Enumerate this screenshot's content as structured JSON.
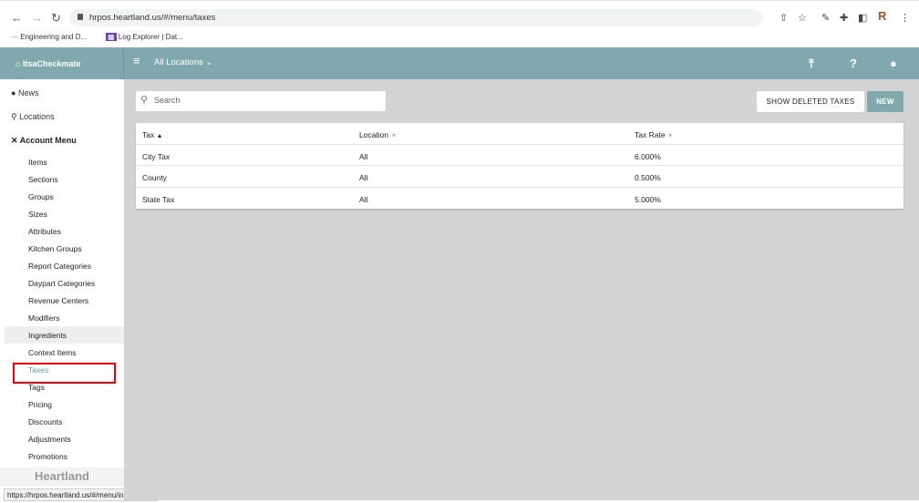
{
  "browser": {
    "url": "hrpos.heartland.us/#/menu/taxes",
    "bookmarks": [
      "Engineering and D...",
      "Log Explorer | Dat..."
    ],
    "profile_initial": "R",
    "status_url": "https://hrpos.heartland.us/#/menu/ingredients"
  },
  "header": {
    "brand": "ItsaCheckmate",
    "location": "All Locations"
  },
  "sidebar": {
    "top": [
      {
        "label": "News",
        "icon": "alert-circle-icon"
      },
      {
        "label": "Locations",
        "icon": "map-pin-icon"
      },
      {
        "label": "Account Menu",
        "icon": "utensils-icon"
      }
    ],
    "items": [
      "Items",
      "Sections",
      "Groups",
      "Sizes",
      "Attributes",
      "Kitchen Groups",
      "Report Categories",
      "Daypart Categories",
      "Revenue Centers",
      "Modifiers",
      "Ingredients",
      "Context Items",
      "Taxes",
      "Tags",
      "Pricing",
      "Discounts",
      "Adjustments",
      "Promotions"
    ],
    "active": "Taxes",
    "hovered": "Ingredients",
    "footer": "Heartland"
  },
  "main": {
    "search_placeholder": "Search",
    "show_deleted": "SHOW DELETED TAXES",
    "new": "NEW",
    "columns": [
      "Tax",
      "Location",
      "Tax Rate"
    ],
    "rows": [
      [
        "City Tax",
        "All",
        "6.000%"
      ],
      [
        "County",
        "All",
        "0.500%"
      ],
      [
        "State Tax",
        "All",
        "5.000%"
      ]
    ]
  },
  "colors": {
    "accent": "#7fa9ad",
    "highlight": "#e00000"
  }
}
